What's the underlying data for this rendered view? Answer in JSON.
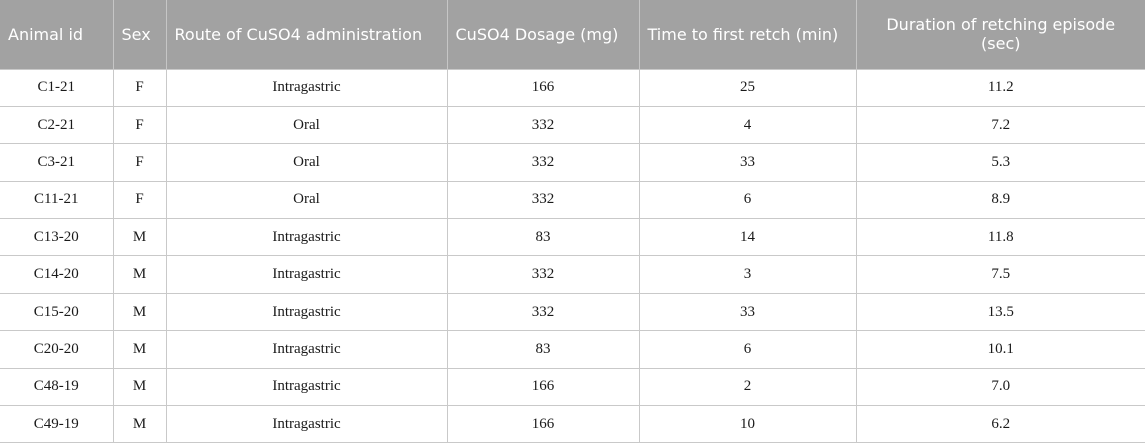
{
  "table": {
    "headers": [
      "Animal id",
      "Sex",
      "Route of CuSO4 administration",
      "CuSO4 Dosage (mg)",
      "Time to first retch (min)",
      "Duration of retching episode (sec)"
    ],
    "rows": [
      [
        "C1-21",
        "F",
        "Intragastric",
        "166",
        "25",
        "11.2"
      ],
      [
        "C2-21",
        "F",
        "Oral",
        "332",
        "4",
        "7.2"
      ],
      [
        "C3-21",
        "F",
        "Oral",
        "332",
        "33",
        "5.3"
      ],
      [
        "C11-21",
        "F",
        "Oral",
        "332",
        "6",
        "8.9"
      ],
      [
        "C13-20",
        "M",
        "Intragastric",
        "83",
        "14",
        "11.8"
      ],
      [
        "C14-20",
        "M",
        "Intragastric",
        "332",
        "3",
        "7.5"
      ],
      [
        "C15-20",
        "M",
        "Intragastric",
        "332",
        "33",
        "13.5"
      ],
      [
        "C20-20",
        "M",
        "Intragastric",
        "83",
        "6",
        "10.1"
      ],
      [
        "C48-19",
        "M",
        "Intragastric",
        "166",
        "2",
        "7.0"
      ],
      [
        "C49-19",
        "M",
        "Intragastric",
        "166",
        "10",
        "6.2"
      ]
    ]
  }
}
